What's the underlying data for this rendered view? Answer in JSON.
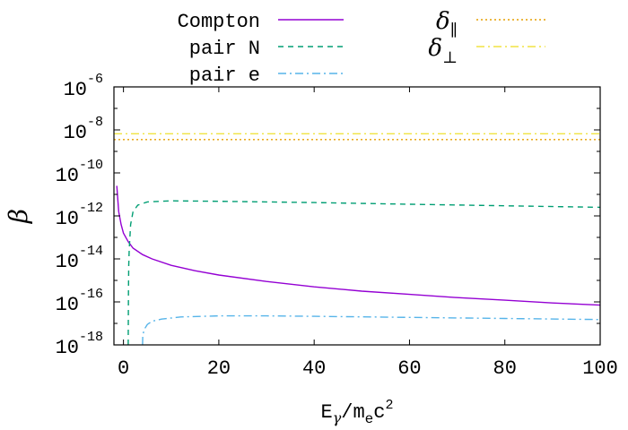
{
  "chart_data": {
    "type": "line",
    "xlabel": "E_γ/m_e c^2",
    "ylabel": "β",
    "xlim": [
      -2,
      100
    ],
    "ylim_exponent": [
      -18,
      -6
    ],
    "y_scale": "log10",
    "x_ticks": [
      0,
      20,
      40,
      60,
      80,
      100
    ],
    "y_tick_exponents": [
      -18,
      -16,
      -14,
      -12,
      -10,
      -8,
      -6
    ],
    "legend_position": "top, above plot",
    "grid": false,
    "series": [
      {
        "name": "Compton",
        "color": "#9400d3",
        "dash": "solid",
        "points": [
          [
            -1.4,
            -10.6
          ],
          [
            -1.0,
            -11.8
          ],
          [
            -0.5,
            -12.4
          ],
          [
            0,
            -12.8
          ],
          [
            1,
            -13.2
          ],
          [
            2,
            -13.5
          ],
          [
            4,
            -13.8
          ],
          [
            6,
            -14.0
          ],
          [
            10,
            -14.3
          ],
          [
            15,
            -14.55
          ],
          [
            20,
            -14.75
          ],
          [
            30,
            -15.05
          ],
          [
            40,
            -15.3
          ],
          [
            50,
            -15.5
          ],
          [
            60,
            -15.65
          ],
          [
            70,
            -15.8
          ],
          [
            80,
            -15.92
          ],
          [
            90,
            -16.05
          ],
          [
            100,
            -16.15
          ]
        ]
      },
      {
        "name": "pair N",
        "color": "#009e73",
        "dash": "dashed",
        "points": [
          [
            1.0,
            -18.0
          ],
          [
            1.05,
            -15.5
          ],
          [
            1.1,
            -14.3
          ],
          [
            1.2,
            -13.6
          ],
          [
            1.5,
            -12.4
          ],
          [
            2,
            -11.8
          ],
          [
            3,
            -11.5
          ],
          [
            5,
            -11.35
          ],
          [
            10,
            -11.3
          ],
          [
            20,
            -11.32
          ],
          [
            40,
            -11.38
          ],
          [
            60,
            -11.46
          ],
          [
            80,
            -11.53
          ],
          [
            100,
            -11.6
          ]
        ]
      },
      {
        "name": "pair e",
        "color": "#56b4e9",
        "dash": "dashdot",
        "points": [
          [
            4.0,
            -18.0
          ],
          [
            4.05,
            -17.6
          ],
          [
            4.3,
            -17.3
          ],
          [
            5,
            -17.05
          ],
          [
            6,
            -16.9
          ],
          [
            8,
            -16.8
          ],
          [
            12,
            -16.7
          ],
          [
            20,
            -16.65
          ],
          [
            30,
            -16.65
          ],
          [
            40,
            -16.67
          ],
          [
            60,
            -16.72
          ],
          [
            80,
            -16.77
          ],
          [
            100,
            -16.82
          ]
        ]
      },
      {
        "name": "δ_∥",
        "color": "#e69f00",
        "dash": "dotted",
        "points": [
          [
            -2,
            -8.45
          ],
          [
            100,
            -8.45
          ]
        ]
      },
      {
        "name": "δ_⊥",
        "color": "#f0e442",
        "dash": "dashdot",
        "points": [
          [
            -2,
            -8.18
          ],
          [
            100,
            -8.18
          ]
        ]
      }
    ]
  }
}
